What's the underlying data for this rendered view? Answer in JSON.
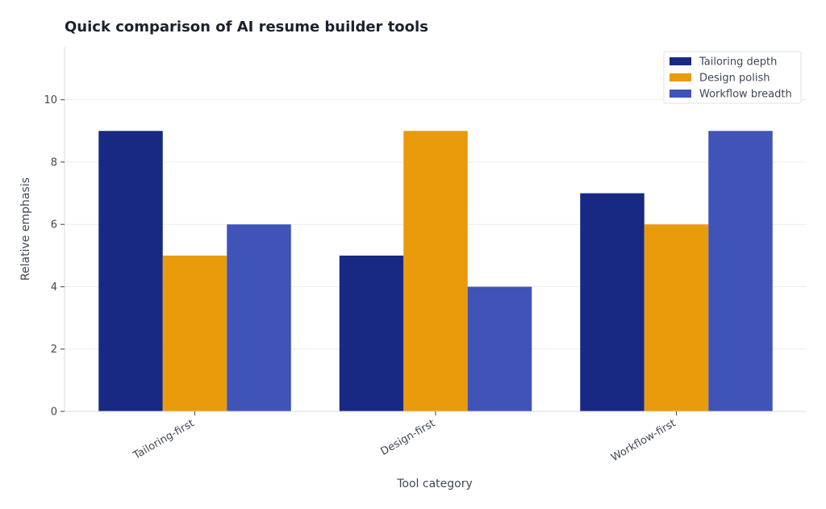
{
  "chart_data": {
    "type": "bar",
    "title": "Quick comparison of AI resume builder tools",
    "xlabel": "Tool category",
    "ylabel": "Relative emphasis",
    "categories": [
      "Tailoring-first",
      "Design-first",
      "Workflow-first"
    ],
    "series": [
      {
        "name": "Tailoring depth",
        "color": "#172983",
        "values": [
          9,
          5,
          7
        ]
      },
      {
        "name": "Design polish",
        "color": "#e99b0b",
        "values": [
          5,
          9,
          6
        ]
      },
      {
        "name": "Workflow breadth",
        "color": "#4053b9",
        "values": [
          6,
          4,
          9
        ]
      }
    ],
    "ylim": [
      0,
      11.7
    ],
    "yticks": [
      0,
      2,
      4,
      6,
      8,
      10
    ],
    "grid": true,
    "legend": "top-right"
  }
}
